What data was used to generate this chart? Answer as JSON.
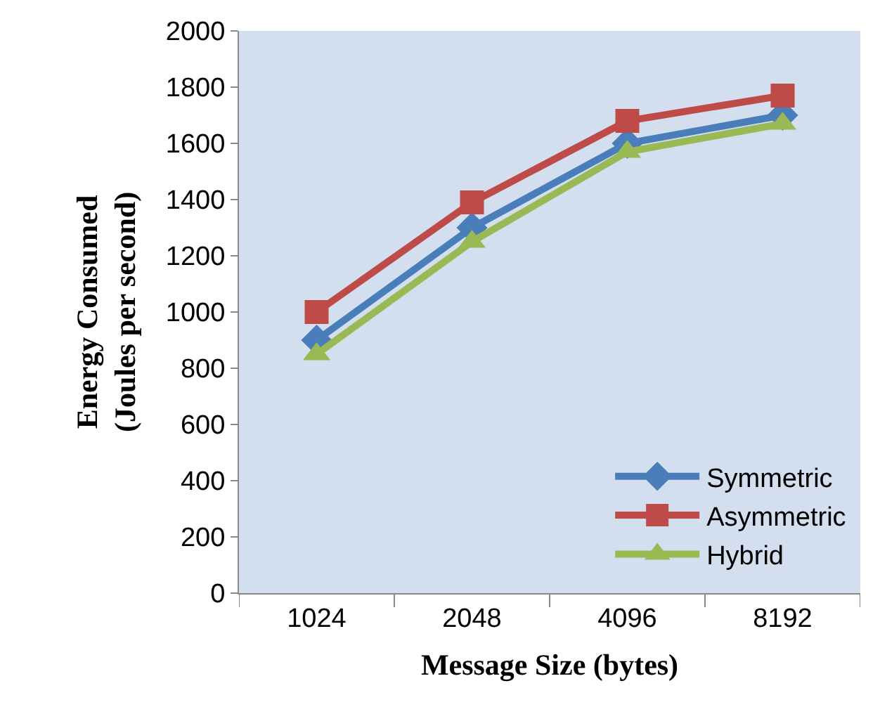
{
  "chart_data": {
    "type": "line",
    "xlabel": "Message Size (bytes)",
    "ylabel": "Energy Consumed\n(Joules per second)",
    "categories": [
      "1024",
      "2048",
      "4096",
      "8192"
    ],
    "series": [
      {
        "name": "Symmetric",
        "color": "#4a7ebb",
        "values": [
          900,
          1300,
          1600,
          1700
        ],
        "marker": "diamond"
      },
      {
        "name": "Asymmetric",
        "color": "#be4b48",
        "values": [
          1000,
          1390,
          1680,
          1770
        ],
        "marker": "square"
      },
      {
        "name": "Hybrid",
        "color": "#98b954",
        "values": [
          850,
          1250,
          1570,
          1670
        ],
        "marker": "triangle"
      }
    ],
    "ylim": [
      0,
      2000
    ],
    "yticks": [
      0,
      200,
      400,
      600,
      800,
      1000,
      1200,
      1400,
      1600,
      1800,
      2000
    ],
    "grid": false,
    "legend": "bottom right",
    "line_style": "solid"
  }
}
